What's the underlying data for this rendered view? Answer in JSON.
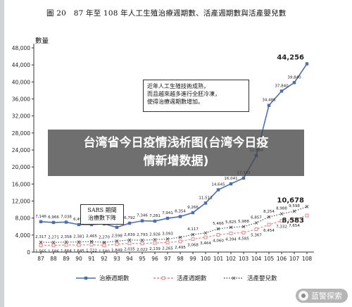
{
  "title": "圖 20　87 年至 108 年人工生殖治療週期數、活產週期數與活產嬰兒數",
  "ylabel": "數量",
  "annotations": {
    "policy_note": "近年人工生殖技術成熟，\n而且越來越多進行全胚冷凍，\n使得治療週期數增加。",
    "sars_note": "SARS 期間\n治療數下降"
  },
  "overlay_text": "台湾省今日疫情浅析图(台湾今日疫\n情新增数据)",
  "watermark_text": "蓝警探索",
  "colors": {
    "treatment": "#4a6fb0",
    "live_birth_cycles": "#e08a8a",
    "live_birth_babies": "#555555",
    "overlay": "#464646"
  },
  "chart_data": {
    "type": "line",
    "title": "圖 20　87 年至 108 年人工生殖治療週期數、活產週期數與活產嬰兒數",
    "ylabel": "數量",
    "xlabel": "",
    "ylim": [
      0,
      48000
    ],
    "yticks": [
      0,
      4000,
      8000,
      12000,
      16000,
      20000,
      24000,
      28000,
      32000,
      36000,
      40000,
      44000,
      48000
    ],
    "ytick_labels": [
      "0",
      "4,000",
      "8,000",
      "12,000",
      "16,000",
      "20,000",
      "24,000",
      "28,000",
      "32,000",
      "36,000",
      "40,000",
      "44,000",
      "48,000"
    ],
    "categories": [
      "87",
      "88",
      "89",
      "90",
      "91",
      "92",
      "93",
      "94",
      "95",
      "96",
      "97",
      "98",
      "99",
      "100",
      "101",
      "102",
      "103",
      "104",
      "105",
      "106",
      "107",
      "108"
    ],
    "grid": false,
    "legend_position": "bottom",
    "series": [
      {
        "name": "治療週期數",
        "color": "#4a6fb0",
        "marker": "square",
        "values": [
          7146,
          6966,
          7038,
          6458,
          6466,
          6622,
          5831,
          6792,
          7346,
          7281,
          7941,
          8354,
          9266,
          11513,
          14645,
          16041,
          17393,
          22684,
          34486,
          37840,
          39840,
          44256
        ],
        "labels": [
          "7,146",
          "6,966",
          "7,038",
          "6,458",
          "6,466",
          "6,622",
          "5,831",
          "6,792",
          "7,346",
          "7,281",
          "7,941",
          "8,354",
          "9,266",
          "11,513",
          "14,645",
          "16,041",
          "17,393",
          "22,684",
          "34,486",
          "37,840",
          "39,840",
          "44,256"
        ]
      },
      {
        "name": "活產週期數",
        "color": "#e08a8a",
        "marker": "square-open",
        "values": [
          1565,
          1586,
          1664,
          1645,
          1722,
          1580,
          1849,
          2035,
          2022,
          2139,
          2265,
          2495,
          3068,
          3464,
          4060,
          4394,
          4585,
          5367,
          6454,
          7332,
          7654,
          8583
        ],
        "labels": [
          "1,565",
          "1,586",
          "1,664",
          "1,645",
          "1,722",
          "1,580",
          "1,849",
          "2,035",
          "2,022",
          "2,139",
          "2,265",
          "2,495",
          "3,068",
          "3,464",
          "4,060",
          "4,394",
          "4,585",
          "5,367",
          "6,454",
          "7,332",
          "7,654",
          "8,583"
        ]
      },
      {
        "name": "活產嬰兒數",
        "color": "#555555",
        "marker": "x",
        "values": [
          2317,
          2271,
          2358,
          2381,
          2465,
          2270,
          2598,
          2839,
          2793,
          2926,
          3093,
          3464,
          4117,
          4500,
          5466,
          5825,
          5988,
          6857,
          8254,
          8988,
          9598,
          10678
        ],
        "labels": [
          "2,317",
          "2,271",
          "2,358",
          "2,381",
          "2,465",
          "2,270",
          "2,598",
          "2,839",
          "2,793",
          "2,926",
          "3,093",
          "",
          "4,117",
          "",
          "5,466",
          "5,825",
          "5,988",
          "6,857",
          "8,254",
          "8,988",
          "9,598",
          "10,678"
        ]
      }
    ]
  }
}
